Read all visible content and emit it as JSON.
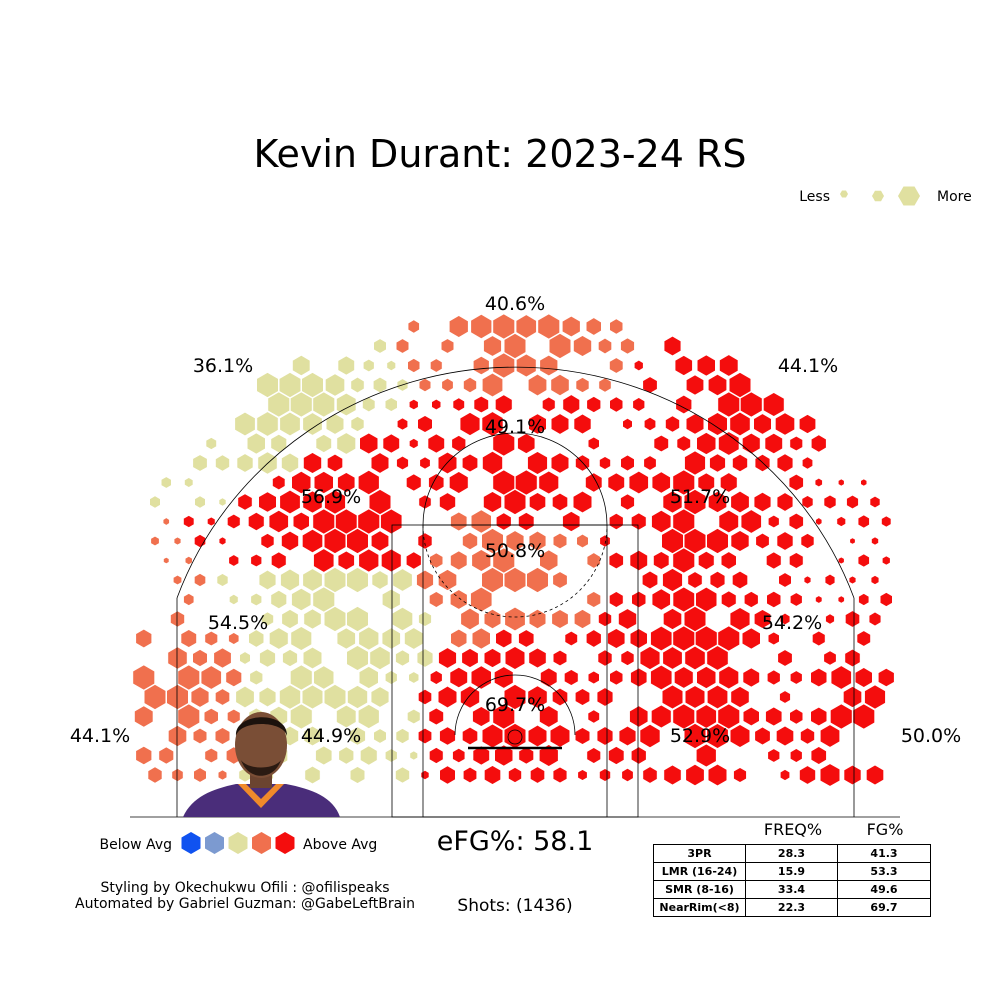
{
  "title": "Kevin Durant: 2023-24 RS",
  "size_legend": {
    "less_label": "Less",
    "more_label": "More"
  },
  "color_legend": {
    "below_label": "Below Avg",
    "above_label": "Above Avg",
    "colors": [
      "#1052f0",
      "#7c9ad0",
      "#e0e0a0",
      "#f0704e",
      "#f40d0d"
    ]
  },
  "efg_label": "eFG%: 58.1",
  "shots_label": "Shots: (1436)",
  "credits": [
    "Styling by Okechukwu Ofili : @ofilispeaks",
    "Automated by Gabriel Guzman: @GabeLeftBrain"
  ],
  "stats_table": {
    "headers": [
      "FREQ%",
      "FG%"
    ],
    "rows": [
      {
        "zone": "3PR",
        "freq": "28.3",
        "fg": "41.3"
      },
      {
        "zone": "LMR (16-24)",
        "freq": "15.9",
        "fg": "53.3"
      },
      {
        "zone": "SMR (8-16)",
        "freq": "33.4",
        "fg": "49.6"
      },
      {
        "zone": "NearRim(<8)",
        "freq": "22.3",
        "fg": "69.7"
      }
    ]
  },
  "chart_data": {
    "type": "hexbin",
    "zone_labels": [
      {
        "id": "top-3",
        "text": "40.6%",
        "level": 3
      },
      {
        "id": "left-wing-3",
        "text": "36.1%",
        "level": 2
      },
      {
        "id": "right-wing-3",
        "text": "44.1%",
        "level": 4
      },
      {
        "id": "left-corner-3",
        "text": "44.1%",
        "level": 3
      },
      {
        "id": "right-corner-3",
        "text": "50.0%",
        "level": 4
      },
      {
        "id": "top-mid",
        "text": "49.1%",
        "level": 4
      },
      {
        "id": "left-elbow",
        "text": "56.9%",
        "level": 4
      },
      {
        "id": "right-elbow",
        "text": "51.7%",
        "level": 4
      },
      {
        "id": "paint",
        "text": "50.8%",
        "level": 3
      },
      {
        "id": "left-wing-mid",
        "text": "54.5%",
        "level": 2
      },
      {
        "id": "right-wing-mid",
        "text": "54.2%",
        "level": 4
      },
      {
        "id": "left-baseline-mid",
        "text": "44.9%",
        "level": 2
      },
      {
        "id": "right-baseline-mid",
        "text": "52.9%",
        "level": 4
      },
      {
        "id": "rim",
        "text": "69.7%",
        "level": 4
      }
    ]
  }
}
